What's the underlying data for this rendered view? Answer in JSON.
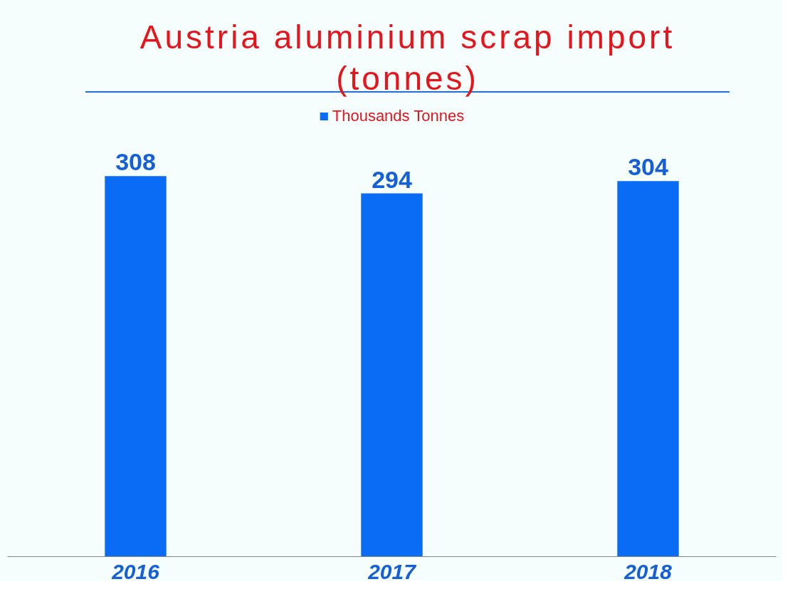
{
  "chart_data": {
    "type": "bar",
    "title": "Austria aluminium scrap import (tonnes)",
    "categories": [
      "2016",
      "2017",
      "2018"
    ],
    "series": [
      {
        "name": "Thousands Tonnes",
        "color": "#0a6cf5",
        "values": [
          308,
          294,
          304
        ]
      }
    ],
    "data_labels": true,
    "legend": "top",
    "grid": false,
    "tick_labels": "x"
  }
}
